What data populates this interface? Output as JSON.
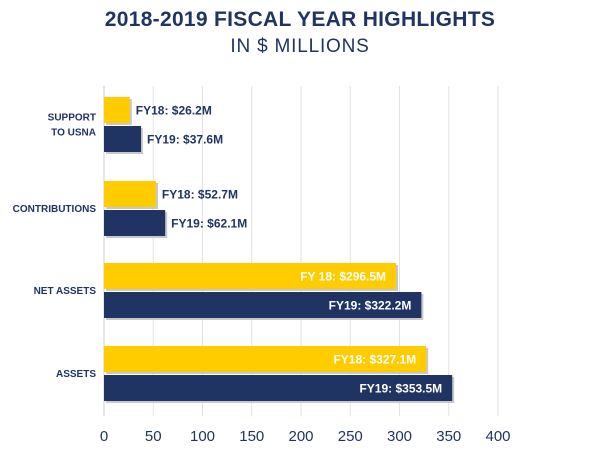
{
  "chart_data": {
    "type": "bar",
    "orientation": "horizontal",
    "title": "2018-2019 FISCAL YEAR HIGHLIGHTS",
    "subtitle": "IN $ MILLIONS",
    "categories": [
      [
        "SUPPORT",
        "TO USNA"
      ],
      [
        "CONTRIBUTIONS"
      ],
      [
        "NET ASSETS"
      ],
      [
        "ASSETS"
      ]
    ],
    "series": [
      {
        "color": "#ffcc00",
        "values": [
          26.2,
          52.7,
          296.5,
          327.1
        ],
        "labels": [
          "FY18: $26.2M",
          "FY18: $52.7M",
          "FY 18: $296.5M",
          "FY18: $327.1M"
        ]
      },
      {
        "color": "#1f3463",
        "values": [
          37.6,
          62.1,
          322.2,
          353.5
        ],
        "labels": [
          "FY19: $37.6M",
          "FY19: $62.1M",
          "FY19: $322.2M",
          "FY19: $353.5M"
        ]
      }
    ],
    "xlim": [
      0,
      400
    ],
    "xticks": [
      0,
      50,
      100,
      150,
      200,
      250,
      300,
      350,
      400
    ],
    "grid": true,
    "text_color": "#1f3463"
  }
}
